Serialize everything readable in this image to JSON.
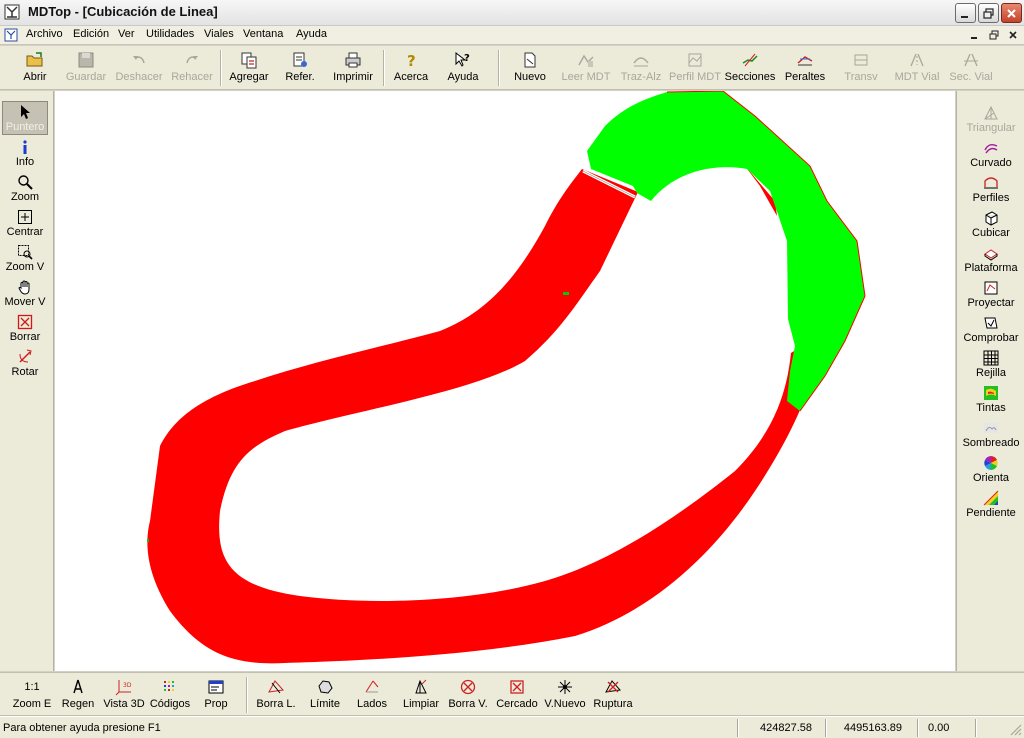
{
  "window": {
    "title": "MDTop - [Cubicación de Linea]"
  },
  "menu": {
    "items": [
      "Archivo",
      "Edición",
      "Ver",
      "Utilidades",
      "Viales",
      "Ventana",
      "Ayuda"
    ]
  },
  "toolbar": {
    "abrir": "Abrir",
    "guardar": "Guardar",
    "deshacer": "Deshacer",
    "rehacer": "Rehacer",
    "agregar": "Agregar",
    "refer": "Refer.",
    "imprimir": "Imprimir",
    "acerca": "Acerca",
    "ayuda": "Ayuda",
    "nuevo": "Nuevo",
    "leer_mdt": "Leer MDT",
    "traz_alz": "Traz-Alz",
    "perfil_mdt": "Perfil MDT",
    "secciones": "Secciones",
    "peraltes": "Peraltes",
    "transv": "Transv",
    "mdt_vial": "MDT Vial",
    "sec_vial": "Sec. Vial"
  },
  "left_tools": {
    "puntero": "Puntero",
    "info": "Info",
    "zoom": "Zoom",
    "centrar": "Centrar",
    "zoom_v": "Zoom V",
    "mover_v": "Mover V",
    "borrar": "Borrar",
    "rotar": "Rotar"
  },
  "right_tools": {
    "triangular": "Triangular",
    "curvado": "Curvado",
    "perfiles": "Perfiles",
    "cubicar": "Cubicar",
    "plataforma": "Plataforma",
    "proyectar": "Proyectar",
    "comprobar": "Comprobar",
    "rejilla": "Rejilla",
    "tintas": "Tintas",
    "sombreado": "Sombreado",
    "orienta": "Orienta",
    "pendiente": "Pendiente"
  },
  "bottom_tools": {
    "scale": "1:1",
    "zoom_e": "Zoom E",
    "regen": "Regen",
    "vista_3d": "Vista 3D",
    "codigos": "Códigos",
    "prop": "Prop",
    "borra_l": "Borra L.",
    "limite": "Límite",
    "lados": "Lados",
    "limpiar": "Limpiar",
    "borra_v": "Borra V.",
    "cercado": "Cercado",
    "v_nuevo": "V.Nuevo",
    "ruptura": "Ruptura"
  },
  "status": {
    "help": "Para obtener ayuda presione F1",
    "x": "424827.58",
    "y": "4495163.89",
    "z": "0.00"
  },
  "colors": {
    "cut": "#ff0000",
    "fill": "#00ff00"
  }
}
